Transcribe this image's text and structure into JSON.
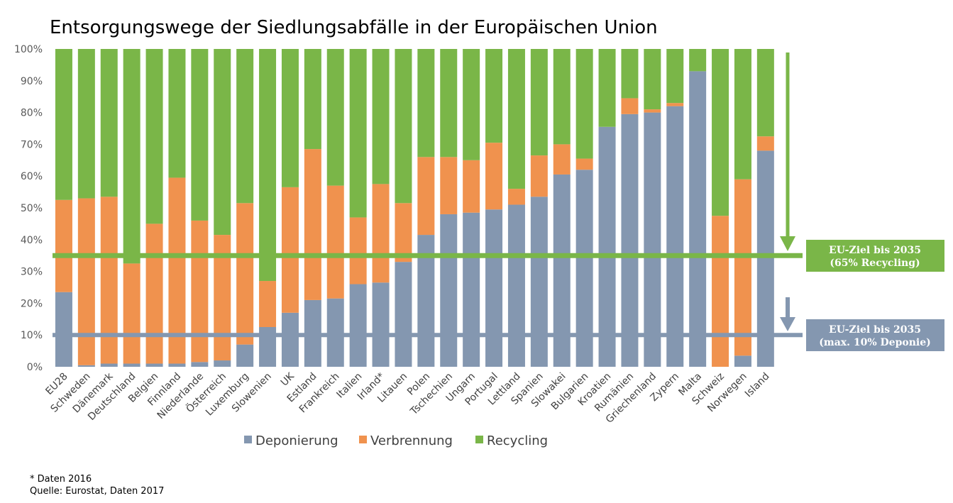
{
  "chart_data": {
    "type": "bar",
    "stacked": true,
    "title": "Entsorgungswege der Siedlungsabfälle in der Europäischen Union",
    "ylim": [
      0,
      100
    ],
    "yticks": [
      "0%",
      "10%",
      "20%",
      "30%",
      "40%",
      "50%",
      "60%",
      "70%",
      "80%",
      "90%",
      "100%"
    ],
    "categories": [
      "EU28",
      "Schweden",
      "Dänemark",
      "Deutschland",
      "Belgien",
      "Finnland",
      "Niederlande",
      "Österreich",
      "Luxemburg",
      "Slowenien",
      "UK",
      "Estland",
      "Frankreich",
      "Italien",
      "Irland*",
      "Litauen",
      "Polen",
      "Tschechien",
      "Ungarn",
      "Portugal",
      "Lettland",
      "Spanien",
      "Slowakei",
      "Bulgarien",
      "Kroatien",
      "Rumänien",
      "Griechenland",
      "Zypern",
      "Malta",
      "Schweiz",
      "Norwegen",
      "Island"
    ],
    "series": [
      {
        "name": "Deponierung",
        "color": "#8497b0",
        "values": [
          23.5,
          0.5,
          1,
          1,
          1,
          1,
          1.5,
          2,
          7,
          12.5,
          17,
          21,
          21.5,
          26,
          26.5,
          33,
          41.5,
          48,
          48.5,
          49.5,
          51,
          53.5,
          60.5,
          62,
          75.5,
          79.5,
          80,
          82,
          93,
          0,
          3.5,
          68
        ]
      },
      {
        "name": "Verbrennung",
        "color": "#f0924e",
        "values": [
          29,
          52.5,
          52.5,
          31.5,
          44,
          58.5,
          44.5,
          39.5,
          44.5,
          14.5,
          39.5,
          47.5,
          35.5,
          21,
          31,
          18.5,
          24.5,
          18,
          16.5,
          21,
          5,
          13,
          9.5,
          3.5,
          0,
          5,
          1,
          1,
          0,
          47.5,
          55.5,
          4.5
        ]
      },
      {
        "name": "Recycling",
        "color": "#7ab648",
        "values": [
          47.5,
          47,
          46.5,
          67.5,
          55,
          40.5,
          54,
          58.5,
          48.5,
          73,
          43.5,
          31.5,
          43,
          53,
          42.5,
          48.5,
          34,
          34,
          35,
          29.5,
          44,
          33.5,
          30,
          34.5,
          24.5,
          15.5,
          19,
          17,
          7,
          52.5,
          41,
          27.5
        ]
      }
    ],
    "targets": [
      {
        "value": 35,
        "line1": "EU-Ziel bis 2035",
        "line2": "(65% Recycling)",
        "color": "#7ab648"
      },
      {
        "value": 10,
        "line1": "EU-Ziel bis 2035",
        "line2": "(max. 10% Deponie)",
        "color": "#8497b0"
      }
    ],
    "legend": "bottom-center"
  },
  "notes": {
    "line1": "* Daten 2016",
    "line2": "Quelle: Eurostat, Daten 2017"
  }
}
